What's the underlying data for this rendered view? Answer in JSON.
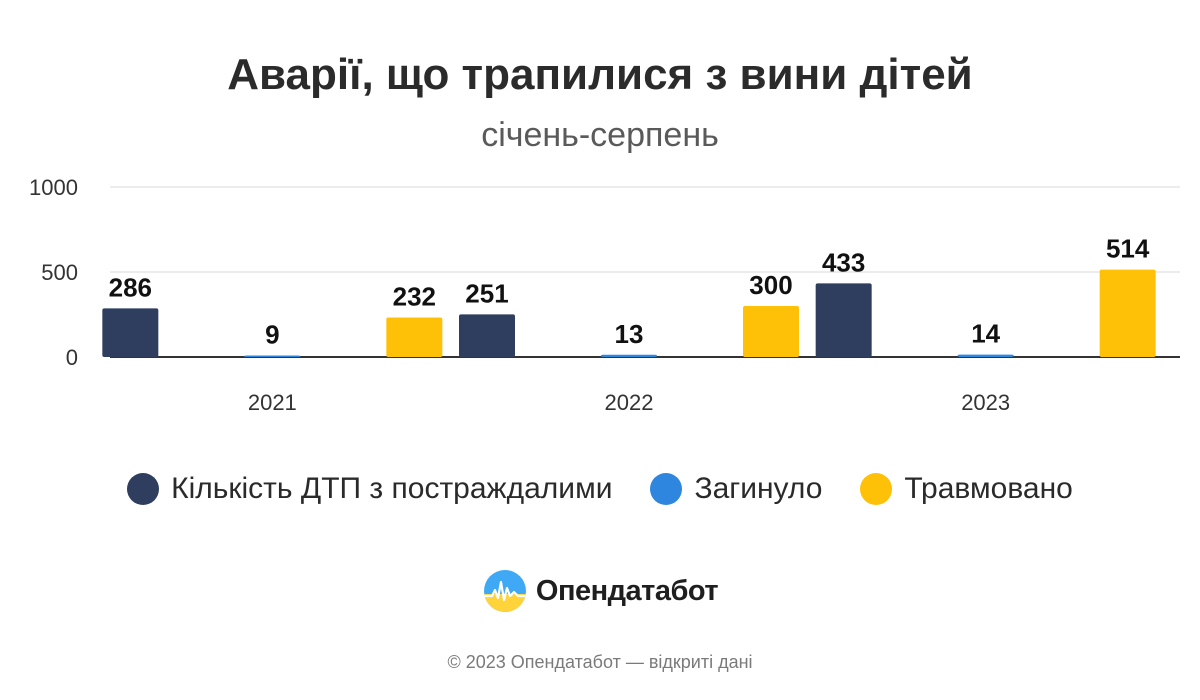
{
  "colors": {
    "series1": "#2f3e5e",
    "series2": "#2e86de",
    "series3": "#ffc107",
    "grid": "#e6e6e6",
    "axis": "#333333"
  },
  "chart_data": {
    "type": "bar",
    "title": "Аварії, що трапилися з вини дітей",
    "subtitle": "січень-серпень",
    "categories": [
      "2021",
      "2022",
      "2023"
    ],
    "series": [
      {
        "name": "Кількість ДТП з постраждалими",
        "values": [
          286,
          251,
          433
        ]
      },
      {
        "name": "Загинуло",
        "values": [
          9,
          13,
          14
        ]
      },
      {
        "name": "Травмовано",
        "values": [
          232,
          300,
          514
        ]
      }
    ],
    "yticks": [
      "0",
      "500",
      "1000"
    ],
    "ylim": [
      0,
      1000
    ],
    "xlabel": "",
    "ylabel": "",
    "grid": true,
    "legend": "bottom"
  },
  "brand": {
    "name": "Опендатабот",
    "logo_icon": "opendatabot-logo-icon"
  },
  "footer": {
    "text": "© 2023 Опендатабот — відкриті дані"
  }
}
